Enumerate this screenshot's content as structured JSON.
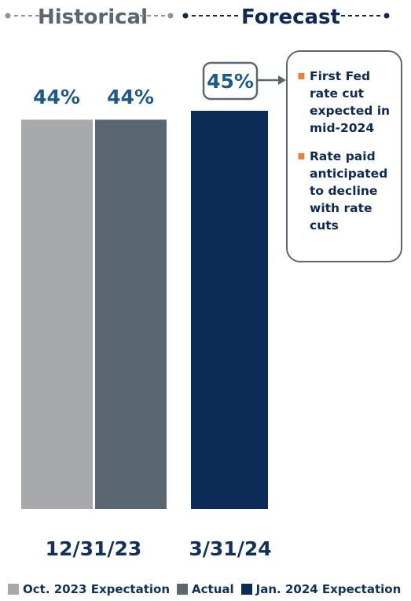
{
  "chart_data": {
    "type": "bar",
    "header": {
      "left": "Historical",
      "right": "Forecast"
    },
    "categories": [
      "12/31/23",
      "3/31/24"
    ],
    "ylim": [
      0,
      45
    ],
    "series": [
      {
        "name": "Oct. 2023 Expectation",
        "color": "#a7a9ac",
        "values": [
          44,
          null
        ],
        "labels": [
          "44%",
          ""
        ]
      },
      {
        "name": "Actual",
        "color": "#5a6770",
        "values": [
          44,
          null
        ],
        "labels": [
          "44%",
          ""
        ]
      },
      {
        "name": "Jan. 2024 Expectation",
        "color": "#0c2b57",
        "values": [
          null,
          45
        ],
        "labels": [
          "",
          "45%"
        ]
      }
    ],
    "callout": {
      "items": [
        "First Fed rate cut expected in mid-2024",
        "Rate paid anticipated to decline with rate cuts"
      ]
    },
    "legend_position": "bottom"
  },
  "colors": {
    "label_blue": "#1d5a8a",
    "axis_text": "#12305a",
    "header_historical": "#5a6770",
    "header_forecast": "#0f2a52",
    "bullet": "#e8823a"
  }
}
